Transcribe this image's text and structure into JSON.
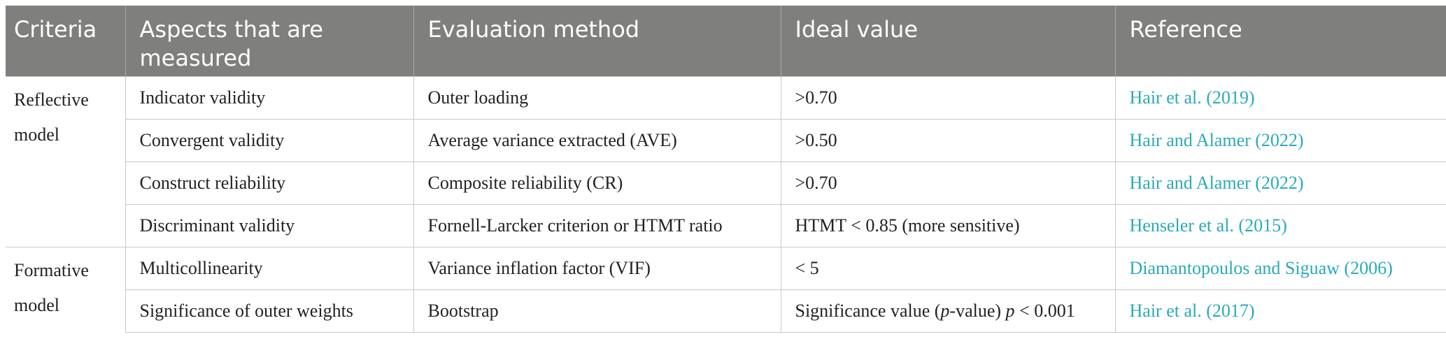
{
  "headers": [
    "Criteria",
    "Aspects that are measured",
    "Evaluation method",
    "Ideal value",
    "Reference"
  ],
  "groups": [
    {
      "criteria": "Reflective model"
    },
    {
      "criteria": "Formative model"
    }
  ],
  "rows": [
    {
      "aspect": "Indicator validity",
      "method": "Outer loading",
      "ideal": ">0.70",
      "reference": "Hair et al. (2019)"
    },
    {
      "aspect": "Convergent validity",
      "method": "Average variance extracted (AVE)",
      "ideal": ">0.50",
      "reference": "Hair and Alamer (2022)"
    },
    {
      "aspect": "Construct reliability",
      "method": "Composite reliability (CR)",
      "ideal": ">0.70",
      "reference": "Hair and Alamer (2022)"
    },
    {
      "aspect": "Discriminant validity",
      "method": "Fornell-Larcker criterion or HTMT ratio",
      "ideal": "HTMT < 0.85 (more sensitive)",
      "reference": "Henseler et al. (2015)"
    },
    {
      "aspect": "Multicollinearity",
      "method": "Variance inflation factor (VIF)",
      "ideal": "< 5",
      "reference": "Diamantopoulos and Siguaw (2006)"
    },
    {
      "aspect": "Significance of outer weights",
      "method": "Bootstrap",
      "ideal_parts": [
        "Significance value (",
        "p",
        "-value) ",
        "p",
        " < 0.001"
      ],
      "reference": "Hair et al. (2017)"
    }
  ],
  "colors": {
    "header_bg": "#7f7f7e",
    "header_text": "#ffffff",
    "link": "#2aaab8",
    "grid": "#c8c8c8"
  }
}
